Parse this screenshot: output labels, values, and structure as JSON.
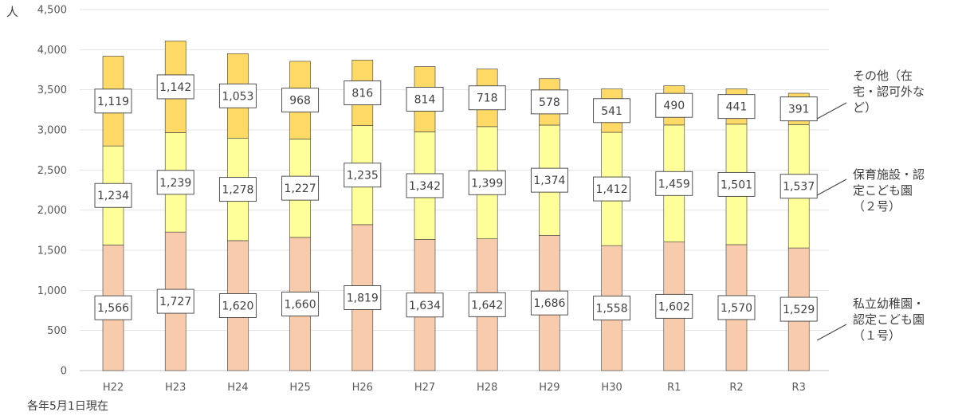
{
  "chart_data": {
    "type": "bar",
    "stacked": true,
    "y_unit": "人",
    "note": "各年5月1日現在",
    "categories": [
      "H22",
      "H23",
      "H24",
      "H25",
      "H26",
      "H27",
      "H28",
      "H29",
      "H30",
      "R1",
      "R2",
      "R3"
    ],
    "ylim": [
      0,
      4500
    ],
    "yticks": [
      {
        "v": 0,
        "label": "0"
      },
      {
        "v": 500,
        "label": "500"
      },
      {
        "v": 1000,
        "label": "1,000"
      },
      {
        "v": 1500,
        "label": "1,500"
      },
      {
        "v": 2000,
        "label": "2,000"
      },
      {
        "v": 2500,
        "label": "2,500"
      },
      {
        "v": 3000,
        "label": "3,000"
      },
      {
        "v": 3500,
        "label": "3,500"
      },
      {
        "v": 4000,
        "label": "4,000"
      },
      {
        "v": 4500,
        "label": "4,500"
      }
    ],
    "grid": true,
    "series": [
      {
        "name_lines": [
          "私立幼稚園・",
          "認定こども園",
          "（１号）"
        ],
        "color": "#f8cbad",
        "values": [
          1566,
          1727,
          1620,
          1660,
          1819,
          1634,
          1642,
          1686,
          1558,
          1602,
          1570,
          1529
        ],
        "labels": [
          "1,566",
          "1,727",
          "1,620",
          "1,660",
          "1,819",
          "1,634",
          "1,642",
          "1,686",
          "1,558",
          "1,602",
          "1,570",
          "1,529"
        ]
      },
      {
        "name_lines": [
          "保育施設・認",
          "定こども園",
          "（２号）"
        ],
        "color": "#ffff99",
        "values": [
          1234,
          1239,
          1278,
          1227,
          1235,
          1342,
          1399,
          1374,
          1412,
          1459,
          1501,
          1537
        ],
        "labels": [
          "1,234",
          "1,239",
          "1,278",
          "1,227",
          "1,235",
          "1,342",
          "1,399",
          "1,374",
          "1,412",
          "1,459",
          "1,501",
          "1,537"
        ]
      },
      {
        "name_lines": [
          "その他（在",
          "宅・認可外な",
          "ど）"
        ],
        "color": "#ffd966",
        "values": [
          1119,
          1142,
          1053,
          968,
          816,
          814,
          718,
          578,
          541,
          490,
          441,
          391
        ],
        "labels": [
          "1,119",
          "1,142",
          "1,053",
          "968",
          "816",
          "814",
          "718",
          "578",
          "541",
          "490",
          "441",
          "391"
        ]
      }
    ]
  }
}
